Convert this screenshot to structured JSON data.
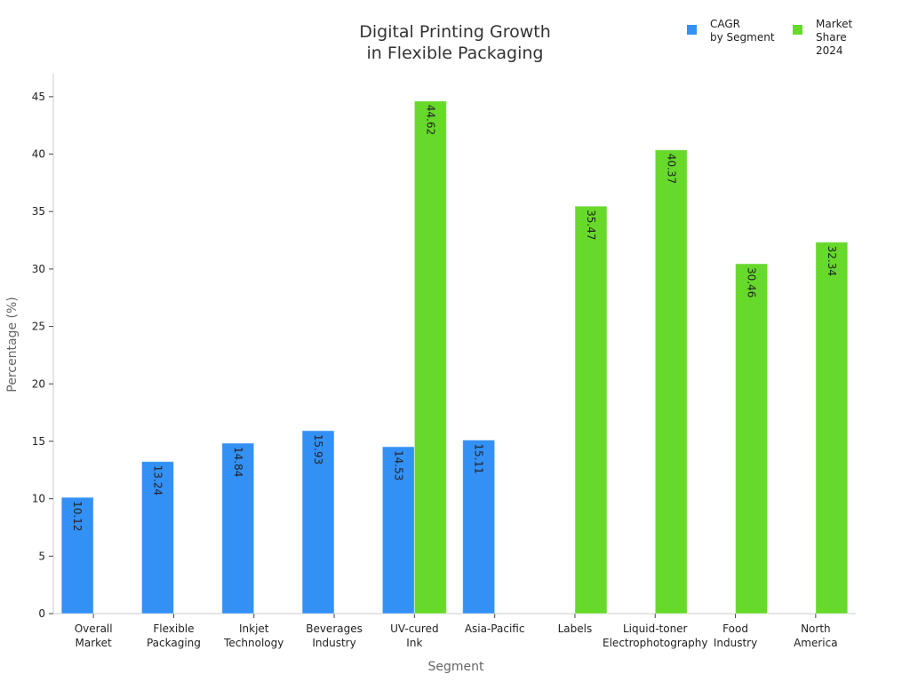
{
  "chart_data": {
    "type": "bar",
    "title": "Digital Printing Growth\nin Flexible Packaging",
    "x_label": "Segment",
    "y_label": "Percentage (%)",
    "categories": [
      "Overall\nMarket",
      "Flexible\nPackaging",
      "Inkjet\nTechnology",
      "Beverages\nIndustry",
      "UV-cured\nInk",
      "Asia-Pacific",
      "Labels",
      "Liquid-toner\nElectrophotography",
      "Food\nIndustry",
      "North\nAmerica"
    ],
    "series": [
      {
        "name": "CAGR\nby Segment",
        "color": "#3390f5",
        "values": [
          10.12,
          13.24,
          14.84,
          15.93,
          14.53,
          15.11,
          null,
          null,
          null,
          null
        ]
      },
      {
        "name": "Market\nShare\n2024",
        "color": "#66d92a",
        "values": [
          null,
          null,
          null,
          null,
          44.62,
          null,
          35.47,
          40.37,
          30.46,
          32.34
        ]
      }
    ],
    "ylim": [
      0,
      47
    ],
    "yticks": [
      0,
      5,
      10,
      15,
      20,
      25,
      30,
      35,
      40,
      45
    ],
    "legend": "upper right"
  }
}
